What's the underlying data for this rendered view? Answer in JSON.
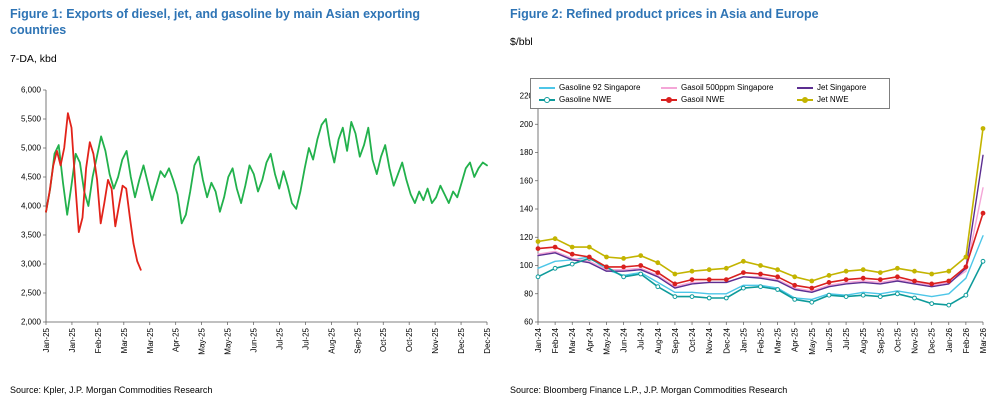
{
  "colors": {
    "title_blue": "#2E74B5",
    "axis_gray": "#595959"
  },
  "figure1": {
    "title": "Figure 1: Exports of diesel, jet, and gasoline by main Asian exporting countries",
    "unit_label": "7-DA, kbd",
    "source": "Source: Kpler, J.P. Morgan Commodities Research"
  },
  "figure2": {
    "title": "Figure 2: Refined product prices in Asia and Europe",
    "unit_label": "$/bbl",
    "source": "Source: Bloomberg Finance L.P., J.P. Morgan Commodities Research"
  },
  "chart_data": [
    {
      "type": "line",
      "title": "Figure 1: Exports of diesel, jet, and gasoline by main Asian exporting countries",
      "ylabel": "7-DA, kbd",
      "ylim": [
        2000,
        6000
      ],
      "ytick_step": 500,
      "grid": false,
      "legend": false,
      "x_axis_labels": [
        "Jan-25",
        "Jan-25",
        "Feb-25",
        "Mar-25",
        "Mar-25",
        "Apr-25",
        "May-25",
        "May-25",
        "Jun-25",
        "Jul-25",
        "Jul-25",
        "Aug-25",
        "Sep-25",
        "Oct-25",
        "Oct-25",
        "Nov-25",
        "Dec-25",
        "Dec-25"
      ],
      "series": [
        {
          "name": "exports-green",
          "color": "#22B14C",
          "marker": "none",
          "x_span": [
            0,
            1
          ],
          "values": [
            3900,
            4300,
            4900,
            5050,
            4400,
            3850,
            4350,
            4900,
            4750,
            4250,
            4000,
            4500,
            4850,
            5200,
            4950,
            4550,
            4300,
            4500,
            4800,
            4950,
            4500,
            4150,
            4450,
            4700,
            4400,
            4100,
            4350,
            4600,
            4500,
            4650,
            4450,
            4200,
            3700,
            3850,
            4250,
            4700,
            4850,
            4450,
            4150,
            4400,
            4250,
            3900,
            4150,
            4500,
            4650,
            4300,
            4050,
            4350,
            4700,
            4550,
            4250,
            4450,
            4750,
            4900,
            4550,
            4300,
            4600,
            4350,
            4050,
            3950,
            4250,
            4650,
            5000,
            4800,
            5150,
            5400,
            5500,
            5050,
            4750,
            5150,
            5350,
            4950,
            5450,
            5250,
            4850,
            5050,
            5350,
            4800,
            4550,
            4850,
            5050,
            4650,
            4350,
            4550,
            4750,
            4450,
            4200,
            4050,
            4250,
            4100,
            4300,
            4050,
            4150,
            4350,
            4200,
            4050,
            4250,
            4150,
            4400,
            4650,
            4750,
            4500,
            4650,
            4750,
            4700
          ]
        },
        {
          "name": "exports-red",
          "color": "#E2231A",
          "marker": "none",
          "x_span": [
            0,
            0.215
          ],
          "values": [
            3900,
            4250,
            4700,
            4950,
            4700,
            5000,
            5600,
            5350,
            4400,
            3550,
            3800,
            4650,
            5100,
            4900,
            4450,
            3700,
            4050,
            4450,
            4300,
            3650,
            4000,
            4350,
            4300,
            3800,
            3350,
            3050,
            2900
          ]
        }
      ]
    },
    {
      "type": "line",
      "title": "Figure 2: Refined product prices in Asia and Europe",
      "ylabel": "$/bbl",
      "ylim": [
        60,
        220
      ],
      "ytick_step": 20,
      "grid": false,
      "legend_position": "top",
      "categories": [
        "Jan-24",
        "Feb-24",
        "Mar-24",
        "Apr-24",
        "May-24",
        "Jun-24",
        "Jul-24",
        "Aug-24",
        "Sep-24",
        "Oct-24",
        "Nov-24",
        "Dec-24",
        "Jan-25",
        "Feb-25",
        "Mar-25",
        "Apr-25",
        "May-25",
        "Jun-25",
        "Jul-25",
        "Aug-25",
        "Sep-25",
        "Oct-25",
        "Nov-25",
        "Dec-25",
        "Jan-26",
        "Feb-26",
        "Mar-26"
      ],
      "series": [
        {
          "name": "Gasoline 92 Singapore",
          "color": "#4DC6E8",
          "marker": "none",
          "values": [
            98,
            103,
            104,
            106,
            97,
            93,
            95,
            88,
            81,
            81,
            80,
            80,
            86,
            86,
            84,
            77,
            76,
            80,
            79,
            81,
            80,
            82,
            80,
            78,
            80,
            91,
            121
          ]
        },
        {
          "name": "Gasoil 500ppm Singapore",
          "color": "#F4A6D7",
          "marker": "none",
          "values": [
            108,
            110,
            105,
            103,
            97,
            97,
            98,
            93,
            85,
            88,
            88,
            88,
            92,
            92,
            90,
            84,
            82,
            86,
            88,
            89,
            88,
            90,
            88,
            86,
            88,
            96,
            155
          ]
        },
        {
          "name": "Jet Singapore",
          "color": "#5C2E91",
          "marker": "none",
          "values": [
            107,
            109,
            104,
            102,
            96,
            96,
            97,
            92,
            84,
            87,
            88,
            88,
            92,
            91,
            89,
            83,
            81,
            85,
            87,
            88,
            87,
            89,
            87,
            85,
            87,
            98,
            178
          ]
        },
        {
          "name": "Gasoline NWE",
          "color": "#0E9B9B",
          "marker": "open-circle",
          "values": [
            92,
            98,
            101,
            105,
            99,
            92,
            94,
            85,
            78,
            78,
            77,
            77,
            84,
            85,
            83,
            76,
            74,
            79,
            78,
            79,
            78,
            80,
            77,
            73,
            72,
            79,
            103
          ]
        },
        {
          "name": "Gasoil NWE",
          "color": "#D9201F",
          "marker": "filled-circle",
          "values": [
            112,
            113,
            108,
            106,
            99,
            99,
            100,
            95,
            87,
            90,
            90,
            90,
            95,
            94,
            92,
            86,
            84,
            88,
            90,
            91,
            90,
            92,
            89,
            87,
            89,
            99,
            137
          ]
        },
        {
          "name": "Jet NWE",
          "color": "#C3B400",
          "marker": "filled-circle",
          "values": [
            117,
            119,
            113,
            113,
            106,
            105,
            107,
            102,
            94,
            96,
            97,
            98,
            103,
            100,
            97,
            92,
            89,
            93,
            96,
            97,
            95,
            98,
            96,
            94,
            96,
            106,
            197
          ]
        }
      ]
    }
  ]
}
